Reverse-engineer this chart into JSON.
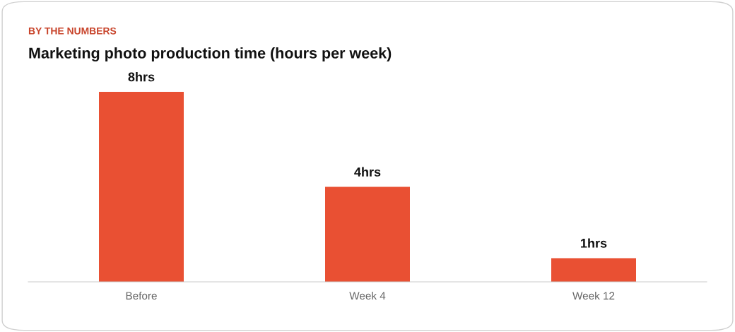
{
  "chart_data": {
    "type": "bar",
    "subtitle": "BY THE NUMBERS",
    "title": "Marketing photo production time (hours per week)",
    "categories": [
      "Before",
      "Week 4",
      "Week 12"
    ],
    "values": [
      8,
      4,
      1
    ],
    "value_labels": [
      "8hrs",
      "4hrs",
      "1hrs"
    ],
    "color": "#e95033"
  }
}
